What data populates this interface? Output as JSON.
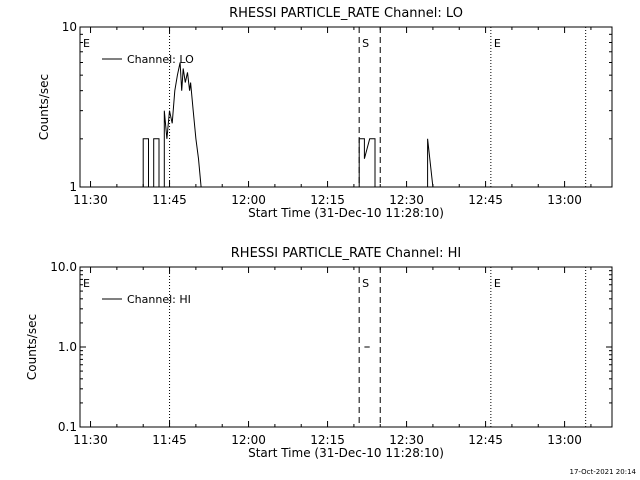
{
  "footer_timestamp": "17-Oct-2021 20:14",
  "chart_data": [
    {
      "type": "line",
      "title": "RHESSI PARTICLE_RATE Channel: LO",
      "xlabel": "Start Time (31-Dec-10 11:28:10)",
      "ylabel": "Counts/sec",
      "yscale": "log",
      "xlim": [
        "11:28",
        "13:09"
      ],
      "ylim": [
        1,
        10
      ],
      "x_ticks": [
        "11:30",
        "11:45",
        "12:00",
        "12:15",
        "12:30",
        "12:45",
        "13:00"
      ],
      "y_ticks": [
        {
          "value": 1,
          "label": "1"
        },
        {
          "value": 10,
          "label": "10"
        }
      ],
      "legend": {
        "label": "Channel: LO",
        "placement": "top-left"
      },
      "markers": [
        {
          "label": "E",
          "time": "11:28",
          "style": "none"
        },
        {
          "label": "",
          "time": "11:45",
          "style": "dotted"
        },
        {
          "label": "S",
          "time": "12:21",
          "style": "dashed"
        },
        {
          "label": "",
          "time": "12:25",
          "style": "dashed"
        },
        {
          "label": "E",
          "time": "12:46",
          "style": "dotted"
        },
        {
          "label": "",
          "time": "13:04",
          "style": "dotted"
        }
      ],
      "series": [
        {
          "name": "Channel: LO",
          "points": [
            [
              "11:40",
              1
            ],
            [
              "11:40",
              2
            ],
            [
              "11:41",
              2
            ],
            [
              "11:41",
              1
            ],
            [
              "11:42",
              1
            ],
            [
              "11:42",
              2
            ],
            [
              "11:43",
              2
            ],
            [
              "11:43",
              1
            ],
            [
              "11:44",
              1
            ],
            [
              "11:44",
              3
            ],
            [
              "11:44.5",
              2
            ],
            [
              "11:45",
              3
            ],
            [
              "11:45.5",
              2.5
            ],
            [
              "11:46",
              4
            ],
            [
              "11:46.5",
              5
            ],
            [
              "11:47",
              6
            ],
            [
              "11:47.3",
              4
            ],
            [
              "11:47.6",
              5.5
            ],
            [
              "11:48",
              4.5
            ],
            [
              "11:48.4",
              5.2
            ],
            [
              "11:48.8",
              4
            ],
            [
              "11:49",
              4.5
            ],
            [
              "11:49.5",
              3
            ],
            [
              "11:50",
              2
            ],
            [
              "11:50.5",
              1.5
            ],
            [
              "11:51",
              1
            ],
            [
              "12:21",
              1
            ],
            [
              "12:21",
              2
            ],
            [
              "12:22",
              2
            ],
            [
              "12:22",
              1.5
            ],
            [
              "12:23",
              2
            ],
            [
              "12:24",
              2
            ],
            [
              "12:24",
              1
            ],
            [
              "12:34",
              1
            ],
            [
              "12:34",
              2
            ],
            [
              "12:35",
              1
            ]
          ]
        }
      ]
    },
    {
      "type": "line",
      "title": "RHESSI PARTICLE_RATE Channel: HI",
      "xlabel": "Start Time (31-Dec-10 11:28:10)",
      "ylabel": "Counts/sec",
      "yscale": "log",
      "xlim": [
        "11:28",
        "13:09"
      ],
      "ylim": [
        0.1,
        10
      ],
      "x_ticks": [
        "11:30",
        "11:45",
        "12:00",
        "12:15",
        "12:30",
        "12:45",
        "13:00"
      ],
      "y_ticks": [
        {
          "value": 0.1,
          "label": "0.1"
        },
        {
          "value": 1,
          "label": "1.0"
        },
        {
          "value": 10,
          "label": "10.0"
        }
      ],
      "legend": {
        "label": "Channel: HI",
        "placement": "top-left"
      },
      "markers": [
        {
          "label": "E",
          "time": "11:28",
          "style": "none"
        },
        {
          "label": "",
          "time": "11:45",
          "style": "dotted"
        },
        {
          "label": "S",
          "time": "12:21",
          "style": "dashed"
        },
        {
          "label": "",
          "time": "12:25",
          "style": "dashed"
        },
        {
          "label": "E",
          "time": "12:46",
          "style": "dotted"
        },
        {
          "label": "",
          "time": "13:04",
          "style": "dotted"
        }
      ],
      "series": [
        {
          "name": "Channel: HI",
          "points": [
            [
              "12:22",
              1
            ],
            [
              "12:23",
              1
            ]
          ]
        }
      ]
    }
  ]
}
